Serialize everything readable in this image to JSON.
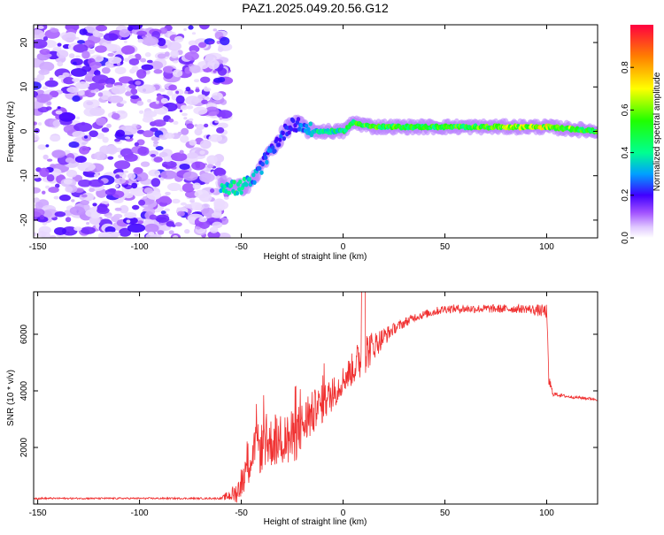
{
  "title": "PAZ1.2025.049.20.56.G12",
  "chart_data": [
    {
      "type": "heatmap",
      "xlabel": "Height of straight line (km)",
      "ylabel": "Frequency (Hz)",
      "xlim": [
        -152,
        125
      ],
      "ylim": [
        -24,
        24
      ],
      "xticks": [
        -150,
        -100,
        -50,
        0,
        50,
        100
      ],
      "yticks": [
        -20,
        -10,
        0,
        10,
        20
      ],
      "colorbar": {
        "label": "Normalized spectral amplitude",
        "range": [
          0.0,
          1.0
        ],
        "ticks": [
          "0.0",
          "0.2",
          "0.4",
          "0.6",
          "0.8"
        ],
        "colors": [
          "#ffffff",
          "#e8d8ff",
          "#b070ff",
          "#6a00e0",
          "#0000ff",
          "#00c0ff",
          "#00ff80",
          "#40ff00",
          "#ffff00",
          "#ff8000",
          "#ff0040"
        ]
      },
      "ridge": [
        {
          "x": -60,
          "y": -12,
          "a": 0.35
        },
        {
          "x": -52,
          "y": -13,
          "a": 0.4
        },
        {
          "x": -44,
          "y": -11,
          "a": 0.3
        },
        {
          "x": -35,
          "y": -4,
          "a": 0.25
        },
        {
          "x": -25,
          "y": 2,
          "a": 0.2
        },
        {
          "x": -15,
          "y": 0,
          "a": 0.35
        },
        {
          "x": 0,
          "y": 0,
          "a": 0.45
        },
        {
          "x": 5,
          "y": 2,
          "a": 0.5
        },
        {
          "x": 15,
          "y": 1,
          "a": 0.55
        },
        {
          "x": 40,
          "y": 1,
          "a": 0.5
        },
        {
          "x": 70,
          "y": 1,
          "a": 0.55
        },
        {
          "x": 100,
          "y": 1,
          "a": 0.65
        },
        {
          "x": 125,
          "y": 0,
          "a": 0.5
        }
      ]
    },
    {
      "type": "line",
      "xlabel": "Height of straight line (km)",
      "ylabel": "SNR (10 * v/v)",
      "xlim": [
        -152,
        125
      ],
      "ylim": [
        0,
        7500
      ],
      "xticks": [
        -150,
        -100,
        -50,
        0,
        50,
        100
      ],
      "yticks": [
        2000,
        4000,
        6000
      ],
      "color": "#f03030",
      "series": [
        {
          "name": "SNR",
          "x": [
            -152,
            -60,
            -52,
            -45,
            -35,
            -25,
            -15,
            -5,
            0,
            5,
            10,
            15,
            25,
            35,
            50,
            70,
            90,
            100,
            101,
            103,
            110,
            125
          ],
          "values": [
            200,
            200,
            400,
            1800,
            2200,
            2300,
            3200,
            3900,
            4400,
            4800,
            5300,
            5600,
            6200,
            6600,
            6900,
            6900,
            6900,
            6800,
            4400,
            3900,
            3800,
            3700
          ],
          "noise": [
            30,
            30,
            400,
            900,
            900,
            1000,
            800,
            600,
            500,
            600,
            900,
            500,
            200,
            150,
            150,
            150,
            150,
            250,
            300,
            80,
            50,
            50
          ]
        }
      ]
    }
  ]
}
